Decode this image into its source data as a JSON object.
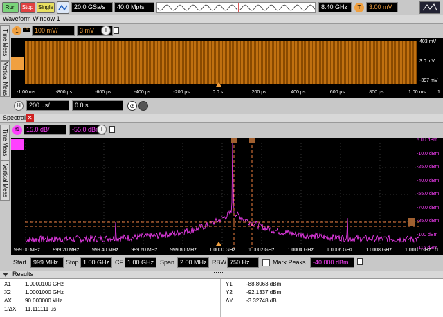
{
  "toolbar": {
    "run": "Run",
    "stop": "Stop",
    "single": "Single",
    "sample_rate": "20.0 GSa/s",
    "memory": "40.0 Mpts",
    "bandwidth": "8.40 GHz",
    "trigger_badge": "T",
    "trigger_level": "3.00 mV"
  },
  "waveform": {
    "title": "Waveform Window 1",
    "channel": "1",
    "channel_tag": "DC",
    "scale": "100 mV/",
    "offset": "3 mV",
    "right_labels": [
      "403 mV",
      "3.0 mV",
      "-397 mV"
    ],
    "x_ticks": [
      "-1.00 ms",
      "-800 µs",
      "-600 µs",
      "-400 µs",
      "-200 µs",
      "0.0 s",
      "200 µs",
      "400 µs",
      "600 µs",
      "800 µs",
      "1.00 ms"
    ],
    "x_tick_right": "1",
    "h_badge": "H",
    "h_scale": "200 µs/",
    "h_delay": "0.0 s",
    "side_tabs": [
      "Time Meas",
      "Vertical Meas"
    ]
  },
  "spectral": {
    "title": "Spectral",
    "badge": "f1",
    "scale": "15.0 dB/",
    "ref": "-55.0 dBm",
    "right_labels": [
      "5.00 dBm",
      "-10.0 dBm",
      "-25.0 dBm",
      "-40.0 dBm",
      "-55.0 dBm",
      "-70.0 dBm",
      "-85.0 dBm",
      "-100 dBm",
      "-115 dBm"
    ],
    "x_ticks": [
      "999.00 MHz",
      "999.20 MHz",
      "999.40 MHz",
      "999.60 MHz",
      "999.80 MHz",
      "1.0000 GHz",
      "1.0002 GHz",
      "1.0004 GHz",
      "1.0006 GHz",
      "1.0008 GHz",
      "1.0010 GHz"
    ],
    "x_tick_right": "f1",
    "side_tabs": [
      "Time Meas",
      "Vertical Meas"
    ],
    "marker_y1": "1",
    "marker_y2": "2",
    "start_label": "Start",
    "start": "999 MHz",
    "stop_label": "Stop",
    "stop": "1.00 GHz",
    "cf_label": "CF",
    "cf": "1.00 GHz",
    "span_label": "Span",
    "span": "2.00 MHz",
    "rbw_label": "RBW",
    "rbw": "750 Hz",
    "mark_peaks_label": "Mark Peaks",
    "mark_peaks_level": "-40.000 dBm"
  },
  "results": {
    "title": "Results",
    "left": [
      {
        "k": "X1",
        "v": "1.0000100 GHz"
      },
      {
        "k": "X2",
        "v": "1.0001000 GHz"
      },
      {
        "k": "ΔX",
        "v": "90.000000 kHz"
      },
      {
        "k": "1/ΔX",
        "v": "11.111111 µs"
      }
    ],
    "right": [
      {
        "k": "Y1",
        "v": "-88.8063 dBm"
      },
      {
        "k": "Y2",
        "v": "-92.1337 dBm"
      },
      {
        "k": "ΔY",
        "v": "-3.32748 dB"
      }
    ]
  },
  "colors": {
    "ch1": "#f0a040",
    "fft": "#ff40ff",
    "marker": "#f08040"
  }
}
